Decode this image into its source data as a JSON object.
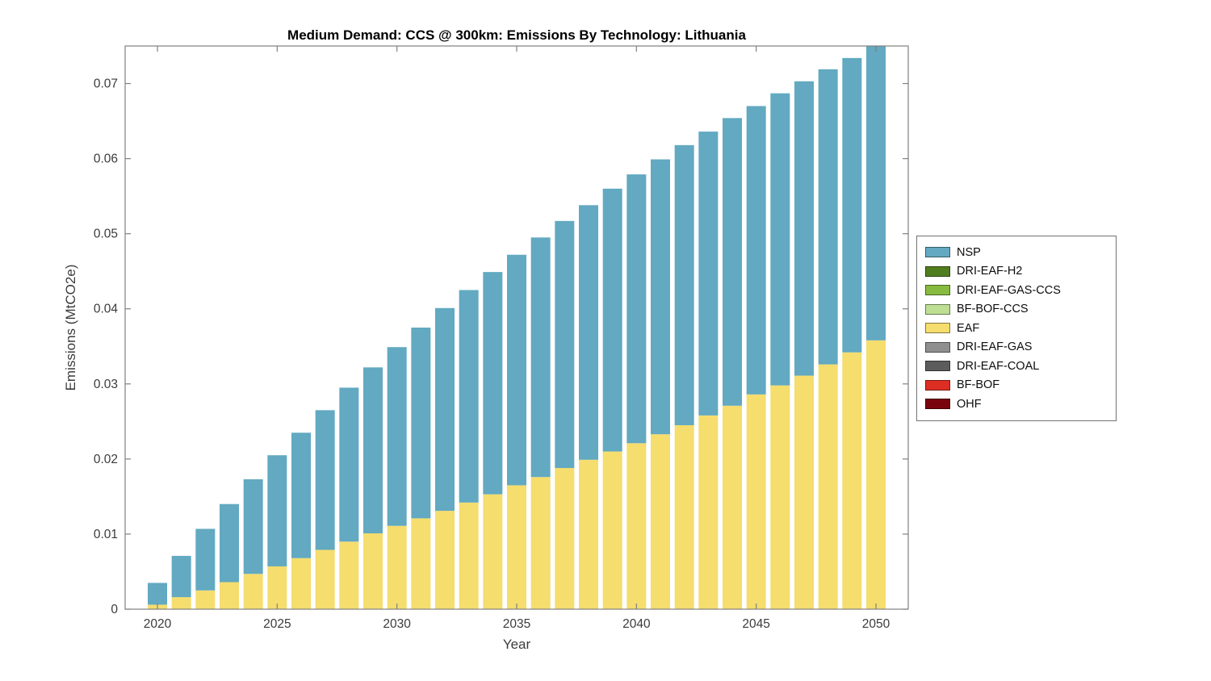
{
  "chart_data": {
    "type": "bar",
    "stacked": true,
    "title": "Medium Demand: CCS @ 300km: Emissions By Technology: Lithuania",
    "xlabel": "Year",
    "ylabel": "Emissions (MtCO2e)",
    "ylim": [
      0,
      0.075
    ],
    "ytick_step": 0.01,
    "ytick_max": 0.07,
    "xticks": [
      2020,
      2025,
      2030,
      2035,
      2040,
      2045,
      2050
    ],
    "categories": [
      2020,
      2021,
      2022,
      2023,
      2024,
      2025,
      2026,
      2027,
      2028,
      2029,
      2030,
      2031,
      2032,
      2033,
      2034,
      2035,
      2036,
      2037,
      2038,
      2039,
      2040,
      2041,
      2042,
      2043,
      2044,
      2045,
      2046,
      2047,
      2048,
      2049,
      2050
    ],
    "series": [
      {
        "name": "EAF",
        "color": "#F5DD6E",
        "values": [
          0.0006,
          0.0016,
          0.0025,
          0.0036,
          0.0047,
          0.0057,
          0.0068,
          0.0079,
          0.009,
          0.0101,
          0.0111,
          0.0121,
          0.0131,
          0.0142,
          0.0153,
          0.0165,
          0.0176,
          0.0188,
          0.0199,
          0.021,
          0.0221,
          0.0233,
          0.0245,
          0.0258,
          0.0271,
          0.0286,
          0.0298,
          0.0311,
          0.0326,
          0.0342,
          0.0358
        ]
      },
      {
        "name": "NSP",
        "color": "#62A9C1",
        "values": [
          0.0029,
          0.0055,
          0.0082,
          0.0104,
          0.0126,
          0.0148,
          0.0167,
          0.0186,
          0.0205,
          0.0221,
          0.0238,
          0.0254,
          0.027,
          0.0283,
          0.0296,
          0.0307,
          0.0319,
          0.0329,
          0.0339,
          0.035,
          0.0358,
          0.0366,
          0.0373,
          0.0378,
          0.0383,
          0.0384,
          0.0389,
          0.0392,
          0.0393,
          0.0392,
          0.0394
        ]
      }
    ],
    "legend": [
      {
        "label": "NSP",
        "color": "#62A9C1"
      },
      {
        "label": "DRI-EAF-H2",
        "color": "#507D1E"
      },
      {
        "label": "DRI-EAF-GAS-CCS",
        "color": "#86BA40"
      },
      {
        "label": "BF-BOF-CCS",
        "color": "#BEDE93"
      },
      {
        "label": "EAF",
        "color": "#F5DD6E"
      },
      {
        "label": "DRI-EAF-GAS",
        "color": "#8F8F8F"
      },
      {
        "label": "DRI-EAF-COAL",
        "color": "#5C5C5C"
      },
      {
        "label": "BF-BOF",
        "color": "#DD2E24"
      },
      {
        "label": "OHF",
        "color": "#7A040C"
      }
    ]
  }
}
